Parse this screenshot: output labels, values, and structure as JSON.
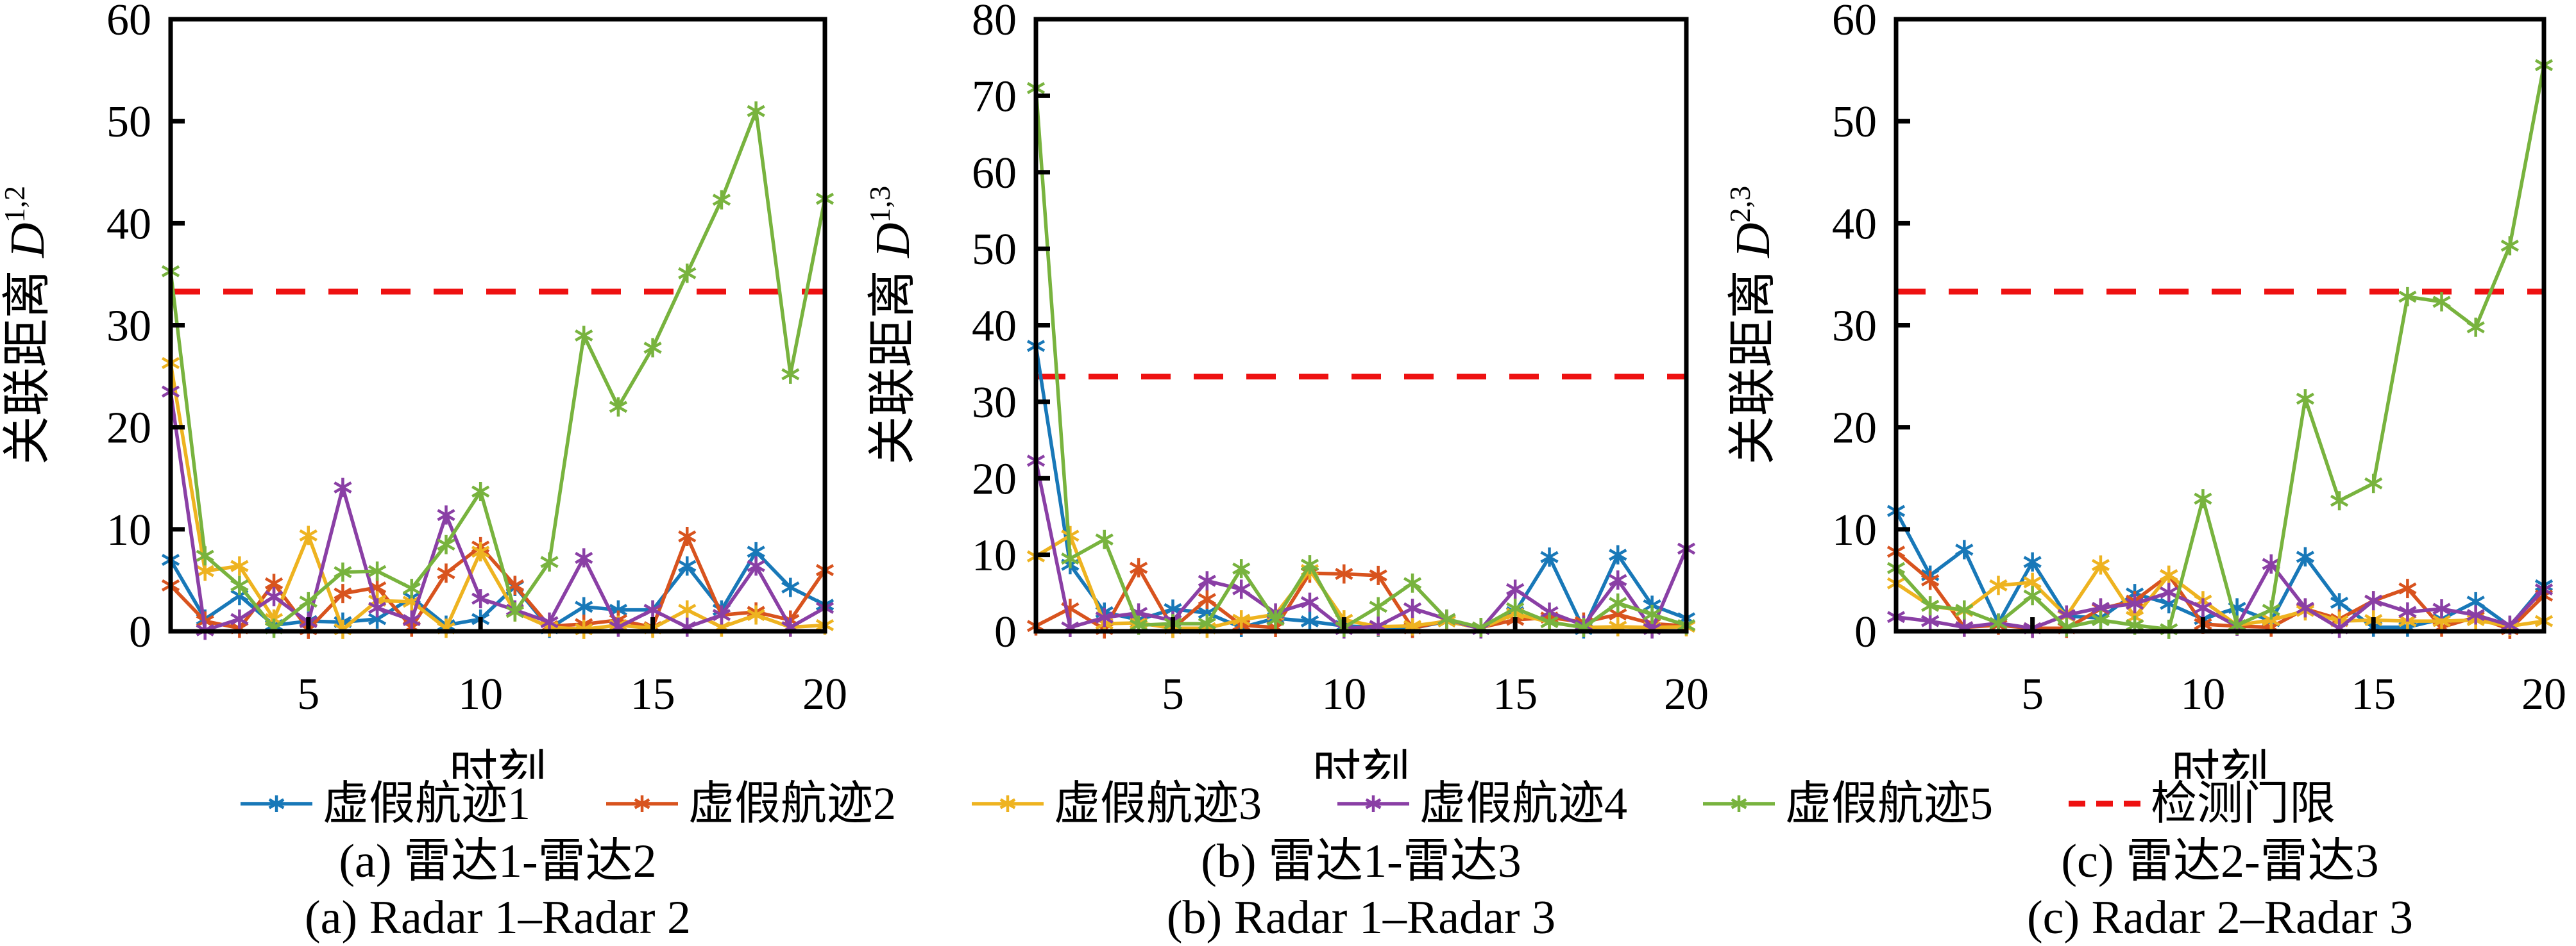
{
  "figure_colors": {
    "track1_blue": "#1878b8",
    "track2_orange": "#d8531e",
    "track3_yellow": "#eeb320",
    "track4_purple": "#8a3fa5",
    "track5_green": "#78b33e",
    "threshold_red": "#ee1111",
    "axis_black": "#000000"
  },
  "legend": {
    "items": [
      {
        "label": "虚假航迹1",
        "color": "#1878b8",
        "style": "marker"
      },
      {
        "label": "虚假航迹2",
        "color": "#d8531e",
        "style": "marker"
      },
      {
        "label": "虚假航迹3",
        "color": "#eeb320",
        "style": "marker"
      },
      {
        "label": "虚假航迹4",
        "color": "#8a3fa5",
        "style": "marker"
      },
      {
        "label": "虚假航迹5",
        "color": "#78b33e",
        "style": "marker"
      },
      {
        "label": "检测门限",
        "color": "#ee1111",
        "style": "dashed"
      }
    ]
  },
  "chart_data": [
    {
      "type": "line",
      "id": "a",
      "title": "",
      "xlabel": "时刻",
      "ylabel_cn": "关联距离",
      "ylabel_var": "D",
      "ylabel_sup": "1,2",
      "caption_cn": "(a) 雷达1-雷达2",
      "caption_en": "(a) Radar 1–Radar 2",
      "xlim": [
        1,
        20
      ],
      "ylim": [
        0,
        60
      ],
      "xticks": [
        5,
        10,
        15,
        20
      ],
      "yticks": [
        0,
        10,
        20,
        30,
        40,
        50,
        60
      ],
      "grid": false,
      "threshold": {
        "label": "检测门限",
        "value": 33.3
      },
      "x_values": [
        1,
        2,
        3,
        4,
        5,
        6,
        7,
        8,
        9,
        10,
        11,
        12,
        13,
        14,
        15,
        16,
        17,
        18,
        19,
        20
      ],
      "series": [
        {
          "name": "虚假航迹1",
          "color": "#1878b8",
          "values": [
            7.0,
            1.2,
            3.5,
            0.6,
            1.0,
            0.9,
            1.2,
            3.3,
            0.6,
            1.2,
            4.4,
            0.3,
            2.4,
            2.1,
            2.1,
            6.4,
            2.1,
            7.8,
            4.3,
            2.6
          ]
        },
        {
          "name": "虚假航迹2",
          "color": "#d8531e",
          "values": [
            4.5,
            1.0,
            0.3,
            4.7,
            0.2,
            3.7,
            4.3,
            0.4,
            5.7,
            8.3,
            4.5,
            0.5,
            0.7,
            1.1,
            0.4,
            9.3,
            1.6,
            1.9,
            1.1,
            6.0
          ]
        },
        {
          "name": "虚假航迹3",
          "color": "#eeb320",
          "values": [
            26.3,
            5.9,
            6.4,
            1.2,
            9.4,
            0.2,
            3.0,
            2.9,
            0.3,
            7.8,
            1.9,
            0.4,
            0.2,
            0.6,
            0.3,
            2.1,
            0.4,
            1.6,
            0.4,
            0.6
          ]
        },
        {
          "name": "虚假航迹4",
          "color": "#8a3fa5",
          "values": [
            23.5,
            0.1,
            1.2,
            3.4,
            0.9,
            14.1,
            2.3,
            1.1,
            11.4,
            3.2,
            2.1,
            0.9,
            7.2,
            0.4,
            2.1,
            0.4,
            1.6,
            6.4,
            0.4,
            2.3
          ]
        },
        {
          "name": "虚假航迹5",
          "color": "#78b33e",
          "values": [
            35.3,
            7.4,
            4.5,
            0.3,
            2.9,
            5.8,
            5.9,
            4.2,
            8.5,
            13.7,
            1.9,
            6.8,
            29.0,
            22.0,
            27.8,
            35.1,
            42.3,
            51.0,
            25.2,
            42.4
          ]
        }
      ]
    },
    {
      "type": "line",
      "id": "b",
      "title": "",
      "xlabel": "时刻",
      "ylabel_cn": "关联距离",
      "ylabel_var": "D",
      "ylabel_sup": "1,3",
      "caption_cn": "(b) 雷达1-雷达3",
      "caption_en": "(b) Radar 1–Radar 3",
      "xlim": [
        1,
        20
      ],
      "ylim": [
        0,
        80
      ],
      "xticks": [
        5,
        10,
        15,
        20
      ],
      "yticks": [
        0,
        10,
        20,
        30,
        40,
        50,
        60,
        70,
        80
      ],
      "grid": false,
      "threshold": {
        "label": "检测门限",
        "value": 33.3
      },
      "x_values": [
        1,
        2,
        3,
        4,
        5,
        6,
        7,
        8,
        9,
        10,
        11,
        12,
        13,
        14,
        15,
        16,
        17,
        18,
        19,
        20
      ],
      "series": [
        {
          "name": "虚假航迹1",
          "color": "#1878b8",
          "values": [
            37.3,
            8.7,
            2.5,
            1.5,
            2.9,
            2.4,
            0.5,
            1.7,
            1.3,
            0.7,
            0.5,
            0.4,
            1.3,
            0.4,
            2.5,
            9.7,
            0.3,
            10.0,
            3.4,
            1.7
          ]
        },
        {
          "name": "虚假航迹2",
          "color": "#d8531e",
          "values": [
            0.7,
            3.0,
            0.3,
            8.3,
            0.4,
            4.2,
            0.8,
            0.5,
            7.6,
            7.5,
            7.3,
            0.4,
            1.4,
            0.5,
            1.5,
            1.8,
            1.2,
            2.2,
            1.0,
            0.7
          ]
        },
        {
          "name": "虚假航迹3",
          "color": "#eeb320",
          "values": [
            9.8,
            12.5,
            1.0,
            1.1,
            0.4,
            0.4,
            1.5,
            2.2,
            8.0,
            1.5,
            0.6,
            0.7,
            1.3,
            0.4,
            2.3,
            1.2,
            0.5,
            0.6,
            0.5,
            0.6
          ]
        },
        {
          "name": "虚假航迹4",
          "color": "#8a3fa5",
          "values": [
            22.3,
            0.5,
            1.8,
            2.4,
            1.4,
            6.6,
            5.5,
            2.4,
            3.8,
            0.3,
            0.7,
            3.0,
            1.6,
            0.3,
            5.5,
            2.5,
            0.8,
            6.7,
            0.3,
            10.8
          ]
        },
        {
          "name": "虚假航迹5",
          "color": "#78b33e",
          "values": [
            71.0,
            9.5,
            12.0,
            0.8,
            1.0,
            1.0,
            8.2,
            1.5,
            8.7,
            0.5,
            3.2,
            6.3,
            1.6,
            0.5,
            3.0,
            1.2,
            0.5,
            3.7,
            2.2,
            0.8
          ]
        }
      ]
    },
    {
      "type": "line",
      "id": "c",
      "title": "",
      "xlabel": "时刻",
      "ylabel_cn": "关联距离",
      "ylabel_var": "D",
      "ylabel_sup": "2,3",
      "caption_cn": "(c) 雷达2-雷达3",
      "caption_en": "(c) Radar 2–Radar 3",
      "xlim": [
        1,
        20
      ],
      "ylim": [
        0,
        60
      ],
      "xticks": [
        5,
        10,
        15,
        20
      ],
      "yticks": [
        0,
        10,
        20,
        30,
        40,
        50,
        60
      ],
      "grid": false,
      "threshold": {
        "label": "检测门限",
        "value": 33.3
      },
      "x_values": [
        1,
        2,
        3,
        4,
        5,
        6,
        7,
        8,
        9,
        10,
        11,
        12,
        13,
        14,
        15,
        16,
        17,
        18,
        19,
        20
      ],
      "series": [
        {
          "name": "虚假航迹1",
          "color": "#1878b8",
          "values": [
            11.8,
            5.5,
            8.0,
            0.8,
            6.8,
            1.5,
            1.3,
            3.7,
            2.7,
            1.2,
            2.3,
            1.0,
            7.3,
            2.8,
            0.4,
            0.4,
            1.2,
            2.9,
            0.5,
            4.5
          ]
        },
        {
          "name": "虚假航迹2",
          "color": "#d8531e",
          "values": [
            7.8,
            5.0,
            0.4,
            0.6,
            0.3,
            0.3,
            2.2,
            3.0,
            5.5,
            0.7,
            0.5,
            0.4,
            2.2,
            1.2,
            3.0,
            4.2,
            0.4,
            1.4,
            0.2,
            3.5
          ]
        },
        {
          "name": "虚假航迹3",
          "color": "#eeb320",
          "values": [
            4.7,
            2.5,
            2.0,
            4.5,
            4.8,
            1.5,
            6.5,
            1.4,
            5.5,
            3.0,
            0.6,
            1.1,
            2.0,
            1.0,
            1.1,
            1.0,
            1.0,
            1.1,
            0.5,
            1.0
          ]
        },
        {
          "name": "虚假航迹4",
          "color": "#8a3fa5",
          "values": [
            1.4,
            1.0,
            0.4,
            0.8,
            0.3,
            1.6,
            2.3,
            2.7,
            3.8,
            2.3,
            0.5,
            6.6,
            2.3,
            0.3,
            3.0,
            1.9,
            2.2,
            1.6,
            0.6,
            4.1
          ]
        },
        {
          "name": "虚假航迹5",
          "color": "#78b33e",
          "values": [
            6.2,
            2.5,
            2.1,
            0.8,
            3.5,
            0.4,
            1.1,
            0.6,
            0.2,
            13.0,
            0.6,
            2.1,
            22.8,
            12.8,
            14.5,
            32.8,
            32.3,
            29.8,
            37.8,
            55.5
          ]
        }
      ]
    }
  ]
}
